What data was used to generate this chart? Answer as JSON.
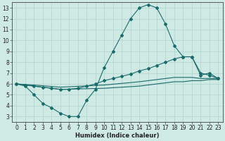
{
  "xlabel": "Humidex (Indice chaleur)",
  "xlim": [
    -0.5,
    23.5
  ],
  "ylim": [
    2.5,
    13.5
  ],
  "xticks": [
    0,
    1,
    2,
    3,
    4,
    5,
    6,
    7,
    8,
    9,
    10,
    11,
    12,
    13,
    14,
    15,
    16,
    17,
    18,
    19,
    20,
    21,
    22,
    23
  ],
  "yticks": [
    3,
    4,
    5,
    6,
    7,
    8,
    9,
    10,
    11,
    12,
    13
  ],
  "bg_color": "#cfe9e5",
  "grid_color": "#b0d4ce",
  "line_color": "#1a6b6b",
  "series1_x": [
    0,
    1,
    2,
    3,
    4,
    5,
    6,
    7,
    8,
    9,
    10,
    11,
    12,
    13,
    14,
    15,
    16,
    17,
    18,
    19,
    20,
    21,
    22,
    23
  ],
  "series1_y": [
    6.0,
    5.8,
    5.0,
    4.2,
    3.8,
    3.3,
    3.0,
    3.0,
    4.5,
    5.5,
    7.5,
    9.0,
    10.5,
    12.0,
    13.0,
    13.3,
    13.0,
    11.5,
    9.5,
    8.5,
    8.5,
    6.8,
    7.0,
    6.5
  ],
  "series2_x": [
    0,
    1,
    2,
    3,
    4,
    5,
    6,
    7,
    8,
    9,
    10,
    11,
    12,
    13,
    14,
    15,
    16,
    17,
    18,
    19,
    20,
    21,
    22,
    23
  ],
  "series2_y": [
    6.0,
    5.9,
    5.8,
    5.7,
    5.6,
    5.5,
    5.5,
    5.6,
    5.8,
    6.0,
    6.3,
    6.5,
    6.7,
    6.9,
    7.2,
    7.4,
    7.7,
    8.0,
    8.3,
    8.5,
    8.5,
    7.0,
    6.8,
    6.5
  ],
  "series3_x": [
    0,
    2,
    5,
    10,
    14,
    15,
    16,
    17,
    18,
    19,
    20,
    21,
    22,
    23
  ],
  "series3_y": [
    6.0,
    5.9,
    5.7,
    5.9,
    6.2,
    6.3,
    6.4,
    6.5,
    6.6,
    6.6,
    6.6,
    6.5,
    6.5,
    6.5
  ],
  "series4_x": [
    0,
    2,
    5,
    10,
    14,
    15,
    16,
    17,
    18,
    19,
    20,
    21,
    22,
    23
  ],
  "series4_y": [
    6.0,
    5.8,
    5.5,
    5.6,
    5.8,
    5.9,
    6.0,
    6.1,
    6.2,
    6.2,
    6.3,
    6.3,
    6.4,
    6.4
  ]
}
